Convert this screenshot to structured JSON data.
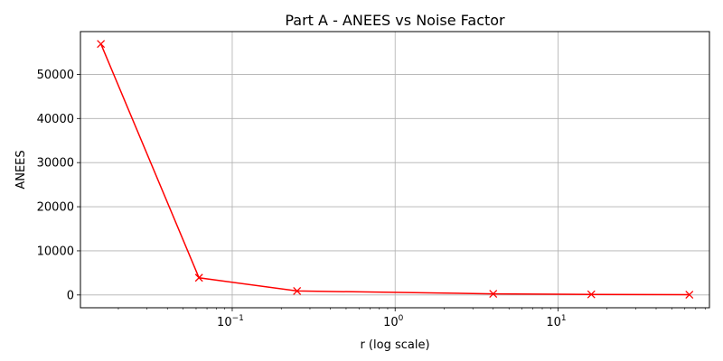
{
  "chart_data": {
    "type": "line",
    "title": "Part A - ANEES vs Noise Factor",
    "xlabel": "r (log scale)",
    "ylabel": "ANEES",
    "xscale": "log",
    "xlim": [
      0.0117,
      85
    ],
    "ylim": [
      -2900,
      59700
    ],
    "grid": true,
    "x_ticks": [
      {
        "value": 0.1,
        "base": "10",
        "exp": "−1"
      },
      {
        "value": 1,
        "base": "10",
        "exp": "0"
      },
      {
        "value": 10,
        "base": "10",
        "exp": "1"
      }
    ],
    "y_ticks": [
      {
        "value": 0,
        "label": "0"
      },
      {
        "value": 10000,
        "label": "10000"
      },
      {
        "value": 20000,
        "label": "20000"
      },
      {
        "value": 30000,
        "label": "30000"
      },
      {
        "value": 40000,
        "label": "40000"
      },
      {
        "value": 50000,
        "label": "50000"
      }
    ],
    "series": [
      {
        "color": "#ff0000",
        "marker": "x",
        "x": [
          0.015625,
          0.0625,
          0.25,
          4,
          16,
          64
        ],
        "y": [
          56900,
          3900,
          900,
          250,
          130,
          60
        ]
      }
    ]
  }
}
